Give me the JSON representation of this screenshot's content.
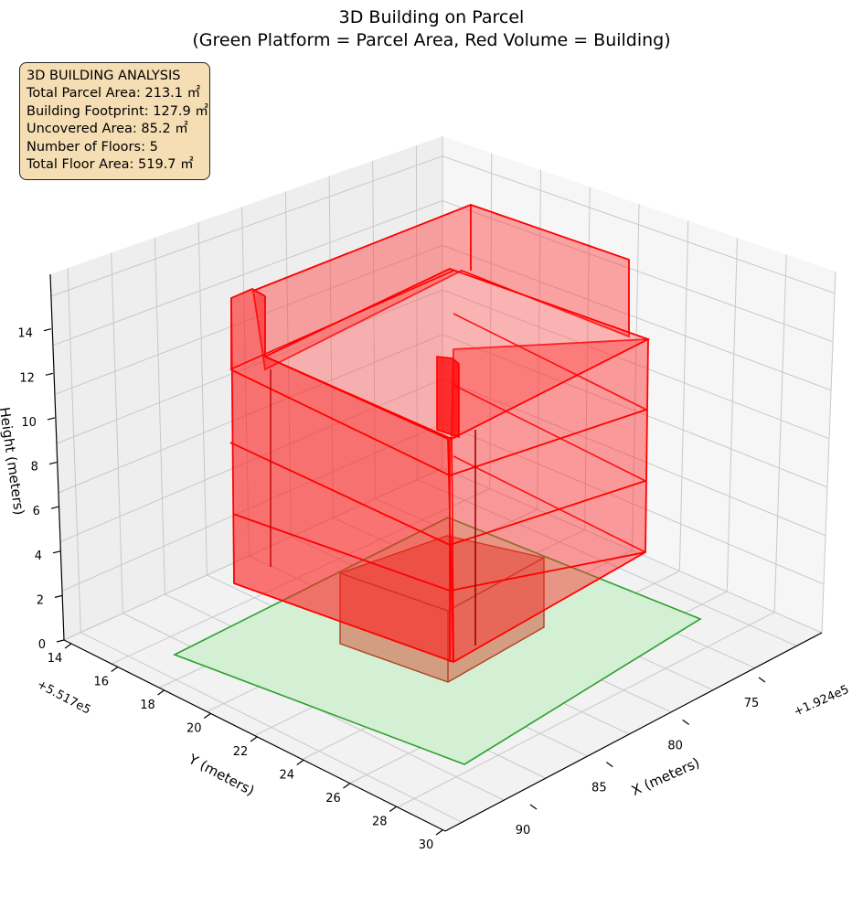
{
  "title_line1": "3D Building on Parcel",
  "title_line2": "(Green Platform = Parcel Area, Red Volume = Building)",
  "info_box": {
    "lines": [
      "3D BUILDING ANALYSIS",
      "Total Parcel Area: 213.1 ㎡",
      "Building Footprint: 127.9 ㎡",
      "Uncovered Area: 85.2 ㎡",
      "Number of Floors: 5",
      "Total Floor Area: 519.7 ㎡"
    ],
    "background": "#f5deb3"
  },
  "chart_data": {
    "type": "3d-polygons",
    "title": "3D Building on Parcel\n(Green Platform = Parcel Area, Red Volume = Building)",
    "x_axis": {
      "label": "X (meters)",
      "offset_label": "+1.924e5",
      "ticks": [
        "75",
        "80",
        "85",
        "90"
      ]
    },
    "y_axis": {
      "label": "Y (meters)",
      "offset_label": "+5.517e5",
      "ticks": [
        "14",
        "16",
        "18",
        "20",
        "22",
        "24",
        "26",
        "28",
        "30"
      ]
    },
    "z_axis": {
      "label": "Height (meters)",
      "ticks": [
        "0",
        "2",
        "4",
        "6",
        "8",
        "10",
        "12",
        "14"
      ]
    },
    "parcel": {
      "name": "Green Platform = Parcel Area",
      "area_m2": 213.1,
      "height_m": 0,
      "color": "#2ca02c",
      "fill": "#d4f0d4"
    },
    "building": {
      "name": "Red Volume = Building",
      "footprint_m2": 127.9,
      "uncovered_m2": 85.2,
      "floors": 5,
      "total_floor_area_m2": 519.7,
      "floor_heights_m": [
        0,
        3,
        6,
        9,
        12,
        15
      ],
      "color": "#ff0000"
    },
    "grid": true,
    "view": "isometric, elevation ~30°"
  }
}
